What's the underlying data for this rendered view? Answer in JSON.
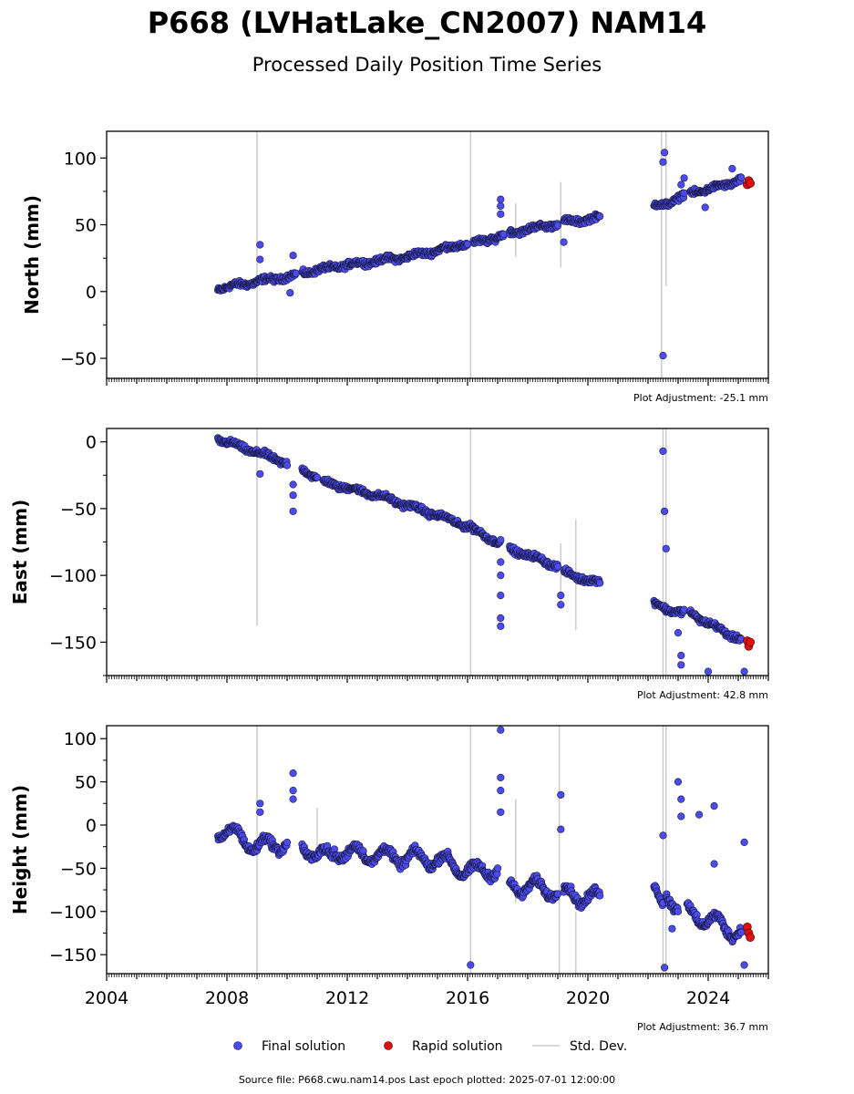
{
  "title": "P668 (LVHatLake_CN2007) NAM14",
  "subtitle": "Processed Daily Position Time Series",
  "legend": {
    "final": "Final solution",
    "rapid": "Rapid solution",
    "std": "Std. Dev."
  },
  "footer": "Source file: P668.cwu.nam14.pos  Last epoch plotted: 2025-07-01 12:00:00",
  "colors": {
    "final": "#4b4bf0",
    "rapid": "#e01010",
    "std": "#cccccc",
    "edge": "#1a1a40"
  },
  "chart_data": [
    {
      "type": "scatter",
      "ylabel": "North (mm)",
      "adjustment": "Plot Adjustment: -25.1 mm",
      "xlim": [
        2004,
        2026
      ],
      "ylim": [
        -65,
        120
      ],
      "yticks": [
        100,
        50,
        0,
        -50
      ],
      "segments": [
        [
          2007.7,
          2.0,
          2009.0,
          7.5
        ],
        [
          2009.0,
          7.5,
          2010.3,
          12.0
        ],
        [
          2010.5,
          14.0,
          2012.0,
          20.0
        ],
        [
          2012.0,
          20.0,
          2014.0,
          26.0
        ],
        [
          2014.0,
          26.0,
          2016.0,
          36.0
        ],
        [
          2016.2,
          36.0,
          2017.2,
          42.0
        ],
        [
          2017.4,
          44.0,
          2019.0,
          51.0
        ],
        [
          2019.2,
          52.0,
          2020.4,
          55.0
        ],
        [
          2022.2,
          64.0,
          2022.6,
          65.0
        ],
        [
          2022.6,
          66.0,
          2023.2,
          72.0
        ],
        [
          2023.4,
          74.0,
          2024.3,
          78.0
        ],
        [
          2024.3,
          78.0,
          2025.1,
          84.0
        ]
      ],
      "outliers": [
        [
          2009.1,
          35.0
        ],
        [
          2009.1,
          24.0
        ],
        [
          2010.2,
          27.0
        ],
        [
          2010.1,
          -1.0
        ],
        [
          2017.1,
          69.0
        ],
        [
          2017.1,
          64.0
        ],
        [
          2017.1,
          58.0
        ],
        [
          2019.2,
          37.0
        ],
        [
          2022.5,
          97.0
        ],
        [
          2022.55,
          104.0
        ],
        [
          2022.5,
          -48.0
        ],
        [
          2023.1,
          80.0
        ],
        [
          2023.2,
          85.0
        ],
        [
          2023.9,
          63.0
        ],
        [
          2024.8,
          92.0
        ]
      ],
      "rapid": [
        [
          2025.3,
          80.0
        ],
        [
          2025.35,
          83.0
        ],
        [
          2025.4,
          81.0
        ]
      ],
      "std_lines": [
        [
          2009.0,
          -65.0,
          120.0
        ],
        [
          2016.1,
          -65.0,
          120.0
        ],
        [
          2019.1,
          18.0,
          82.0
        ],
        [
          2017.6,
          26.0,
          66.0
        ],
        [
          2022.6,
          4.0,
          120.0
        ],
        [
          2022.45,
          -65.0,
          120.0
        ]
      ]
    },
    {
      "type": "scatter",
      "ylabel": "East (mm)",
      "adjustment": "Plot Adjustment: 42.8 mm",
      "xlim": [
        2004,
        2026
      ],
      "ylim": [
        -175,
        10
      ],
      "yticks": [
        0,
        -50,
        -100,
        -150
      ],
      "segments": [
        [
          2007.7,
          2.0,
          2009.0,
          -8.0
        ],
        [
          2009.0,
          -8.0,
          2010.0,
          -16.0
        ],
        [
          2010.5,
          -20.0,
          2011.0,
          -27.0
        ],
        [
          2011.2,
          -30.0,
          2013.0,
          -40.0
        ],
        [
          2013.0,
          -40.0,
          2015.0,
          -55.0
        ],
        [
          2015.0,
          -55.0,
          2016.2,
          -65.0
        ],
        [
          2016.2,
          -66.0,
          2017.1,
          -76.0
        ],
        [
          2017.4,
          -80.0,
          2019.0,
          -93.0
        ],
        [
          2019.2,
          -98.0,
          2020.4,
          -106.0
        ],
        [
          2022.2,
          -121.0,
          2022.6,
          -125.0
        ],
        [
          2022.6,
          -125.0,
          2023.2,
          -128.0
        ],
        [
          2023.4,
          -128.0,
          2024.5,
          -142.0
        ],
        [
          2024.5,
          -142.0,
          2025.1,
          -148.0
        ]
      ],
      "outliers": [
        [
          2009.1,
          -24.0
        ],
        [
          2010.2,
          -32.0
        ],
        [
          2010.2,
          -40.0
        ],
        [
          2010.2,
          -52.0
        ],
        [
          2017.1,
          -90.0
        ],
        [
          2017.1,
          -100.0
        ],
        [
          2017.1,
          -115.0
        ],
        [
          2017.1,
          -132.0
        ],
        [
          2017.1,
          -138.0
        ],
        [
          2019.1,
          -115.0
        ],
        [
          2019.1,
          -122.0
        ],
        [
          2022.5,
          -7.0
        ],
        [
          2022.55,
          -52.0
        ],
        [
          2022.6,
          -80.0
        ],
        [
          2023.0,
          -143.0
        ],
        [
          2023.1,
          -160.0
        ],
        [
          2023.1,
          -167.0
        ],
        [
          2024.0,
          -172.0
        ],
        [
          2025.2,
          -172.0
        ]
      ],
      "rapid": [
        [
          2025.3,
          -149.0
        ],
        [
          2025.35,
          -153.0
        ],
        [
          2025.4,
          -150.0
        ]
      ],
      "std_lines": [
        [
          2009.0,
          -138.0,
          10.0
        ],
        [
          2016.1,
          -175.0,
          10.0
        ],
        [
          2019.6,
          -141.0,
          -58.0
        ],
        [
          2019.1,
          -122.0,
          -76.0
        ],
        [
          2022.5,
          -175.0,
          10.0
        ],
        [
          2022.6,
          -175.0,
          10.0
        ]
      ]
    },
    {
      "type": "scatter",
      "ylabel": "Height (mm)",
      "adjustment": "Plot Adjustment: 36.7 mm",
      "xlim": [
        2004,
        2026
      ],
      "ylim": [
        -172,
        115
      ],
      "yticks": [
        100,
        50,
        0,
        -50,
        -100,
        -150
      ],
      "segments": [
        [
          2007.7,
          -5.0,
          2008.5,
          -15.0
        ],
        [
          2008.5,
          -15.0,
          2009.0,
          -25.0
        ],
        [
          2009.0,
          -25.0,
          2010.0,
          -20.0
        ],
        [
          2010.5,
          -25.0,
          2011.5,
          -40.0
        ],
        [
          2011.5,
          -30.0,
          2013.0,
          -35.0
        ],
        [
          2013.0,
          -35.0,
          2015.0,
          -40.0
        ],
        [
          2015.0,
          -40.0,
          2016.2,
          -55.0
        ],
        [
          2016.2,
          -55.0,
          2017.0,
          -50.0
        ],
        [
          2017.4,
          -70.0,
          2019.0,
          -75.0
        ],
        [
          2019.2,
          -80.0,
          2020.4,
          -85.0
        ],
        [
          2022.2,
          -80.0,
          2022.5,
          -95.0
        ],
        [
          2022.6,
          -75.0,
          2023.0,
          -95.0
        ],
        [
          2023.3,
          -100.0,
          2024.0,
          -110.0
        ],
        [
          2024.0,
          -110.0,
          2025.1,
          -125.0
        ]
      ],
      "outliers": [
        [
          2009.1,
          25.0
        ],
        [
          2009.1,
          15.0
        ],
        [
          2010.2,
          40.0
        ],
        [
          2010.2,
          60.0
        ],
        [
          2010.2,
          30.0
        ],
        [
          2016.1,
          -162.0
        ],
        [
          2017.1,
          110.0
        ],
        [
          2017.1,
          55.0
        ],
        [
          2017.1,
          40.0
        ],
        [
          2017.1,
          15.0
        ],
        [
          2019.1,
          35.0
        ],
        [
          2019.1,
          -5.0
        ],
        [
          2022.5,
          -12.0
        ],
        [
          2022.55,
          -165.0
        ],
        [
          2023.0,
          50.0
        ],
        [
          2023.1,
          30.0
        ],
        [
          2023.1,
          10.0
        ],
        [
          2023.7,
          12.0
        ],
        [
          2024.2,
          22.0
        ],
        [
          2024.2,
          -45.0
        ],
        [
          2025.2,
          -20.0
        ],
        [
          2025.2,
          -162.0
        ],
        [
          2022.8,
          -120.0
        ]
      ],
      "rapid": [
        [
          2025.3,
          -118.0
        ],
        [
          2025.35,
          -125.0
        ],
        [
          2025.4,
          -130.0
        ]
      ],
      "std_lines": [
        [
          2009.0,
          -172.0,
          115.0
        ],
        [
          2016.1,
          -172.0,
          115.0
        ],
        [
          2019.05,
          -172.0,
          115.0
        ],
        [
          2019.6,
          -172.0,
          -100.0
        ],
        [
          2022.5,
          -172.0,
          115.0
        ],
        [
          2022.6,
          -172.0,
          115.0
        ],
        [
          2011.0,
          -30.0,
          20.0
        ],
        [
          2017.6,
          -90.0,
          30.0
        ]
      ]
    }
  ],
  "xticks": [
    2004,
    2008,
    2012,
    2016,
    2020,
    2024
  ]
}
